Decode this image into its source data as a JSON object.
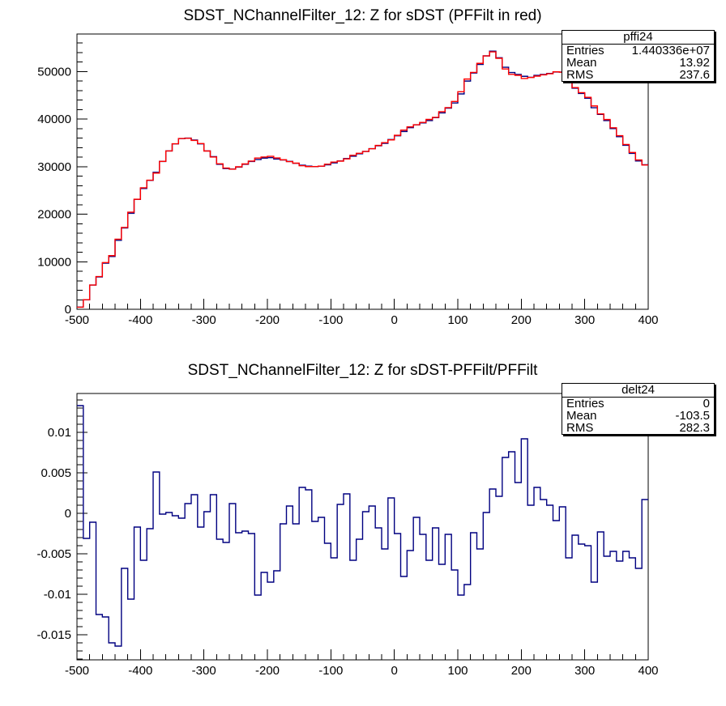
{
  "page": {
    "background_color": "#ffffff",
    "text_color": "#000000",
    "description": "ROOT-style canvas with two stacked 1D histograms"
  },
  "chart_data": [
    {
      "type": "line",
      "title": "SDST_NChannelFilter_12: Z for sDST (PFFilt in red)",
      "xlabel": "",
      "ylabel": "",
      "xlim": [
        -500,
        400
      ],
      "ylim": [
        0,
        57900
      ],
      "grid": false,
      "legend_position": "none (stats box at top right)",
      "bin_start": -500,
      "bin_width": 10,
      "x_minor_step": 20,
      "y_minor_step": 2000,
      "x_ticks": [
        -500,
        -400,
        -300,
        -200,
        -100,
        0,
        100,
        200,
        300,
        400
      ],
      "x_tick_labels": [
        "-500",
        "-400",
        "-300",
        "-200",
        "-100",
        "0",
        "100",
        "200",
        "300",
        "400"
      ],
      "y_ticks": [
        0,
        10000,
        20000,
        30000,
        40000,
        50000
      ],
      "y_tick_labels": [
        "0",
        "10000",
        "20000",
        "30000",
        "40000",
        "50000"
      ],
      "stats": {
        "title": "pffi24",
        "rows": [
          {
            "label": "Entries",
            "value": "1.440336e+07"
          },
          {
            "label": "Mean",
            "value": "13.92"
          },
          {
            "label": "RMS",
            "value": "237.6"
          }
        ]
      },
      "series": [
        {
          "name": "sDST",
          "color": "#000080",
          "values": [
            450,
            2000,
            5100,
            6800,
            9700,
            11100,
            14500,
            17100,
            20200,
            23100,
            25400,
            27100,
            28800,
            31100,
            33300,
            34800,
            35900,
            36000,
            35600,
            34800,
            33300,
            32100,
            30500,
            29600,
            29500,
            29900,
            30500,
            31100,
            31500,
            31800,
            31900,
            31600,
            31400,
            31100,
            30700,
            30300,
            30100,
            30000,
            30100,
            30400,
            30800,
            31200,
            31700,
            32200,
            32700,
            33200,
            33800,
            34400,
            34900,
            35700,
            36500,
            37400,
            38200,
            38800,
            39200,
            39700,
            40300,
            41300,
            42300,
            43400,
            45300,
            48000,
            49700,
            51500,
            53300,
            54300,
            52900,
            50900,
            49800,
            49400,
            49000,
            48800,
            49200,
            49400,
            49600,
            49900,
            49900,
            48300,
            46500,
            45400,
            44400,
            42400,
            41000,
            39700,
            38000,
            36300,
            34500,
            32800,
            31200,
            30400
          ]
        },
        {
          "name": "PFFilt",
          "color": "#ff0000",
          "derived": "PFFilt = sDST / (1 + delta), delta taken from the second chart's series"
        }
      ]
    },
    {
      "type": "line",
      "title": "SDST_NChannelFilter_12: Z for sDST-PFFilt/PFFilt",
      "xlabel": "",
      "ylabel": "",
      "xlim": [
        -500,
        400
      ],
      "ylim": [
        -0.0181,
        0.0148
      ],
      "grid": false,
      "legend_position": "none (stats box at top right)",
      "bin_start": -500,
      "bin_width": 10,
      "x_minor_step": 20,
      "y_minor_step": 0.001,
      "x_ticks": [
        -500,
        -400,
        -300,
        -200,
        -100,
        0,
        100,
        200,
        300,
        400
      ],
      "x_tick_labels": [
        "-500",
        "-400",
        "-300",
        "-200",
        "-100",
        "0",
        "100",
        "200",
        "300",
        "400"
      ],
      "y_ticks": [
        -0.015,
        -0.01,
        -0.005,
        0,
        0.005,
        0.01
      ],
      "y_tick_labels": [
        "-0.015",
        "-0.01",
        "-0.005",
        "0",
        "0.005",
        "0.01"
      ],
      "stats": {
        "title": "delt24",
        "rows": [
          {
            "label": "Entries",
            "value": "0"
          },
          {
            "label": "Mean",
            "value": "-103.5"
          },
          {
            "label": "RMS",
            "value": "282.3"
          }
        ]
      },
      "series": [
        {
          "name": "(sDST-PFFilt)/PFFilt",
          "color": "#000080",
          "values": [
            0.0133,
            -0.0031,
            -0.0011,
            -0.0125,
            -0.0128,
            -0.016,
            -0.0164,
            -0.0068,
            -0.0106,
            -0.0017,
            -0.0058,
            -0.0019,
            0.0051,
            -0.0001,
            0.0001,
            -0.0003,
            -0.0006,
            0.0012,
            0.0023,
            -0.0017,
            0.0002,
            0.0023,
            -0.0032,
            -0.0036,
            0.0012,
            -0.0024,
            -0.0022,
            -0.0025,
            -0.0101,
            -0.0073,
            -0.0085,
            -0.0071,
            -0.0013,
            0.0009,
            -0.0013,
            0.0032,
            0.0029,
            -0.001,
            -0.0005,
            -0.0037,
            -0.0055,
            0.0011,
            0.0024,
            -0.0058,
            -0.0032,
            0.0002,
            0.0009,
            -0.0018,
            -0.0044,
            0.0019,
            -0.0025,
            -0.0078,
            -0.0046,
            -0.0005,
            -0.0026,
            -0.0058,
            -0.0018,
            -0.0063,
            -0.0026,
            -0.007,
            -0.0101,
            -0.0088,
            -0.0024,
            -0.0044,
            0.0001,
            0.003,
            0.0021,
            0.0069,
            0.0076,
            0.0038,
            0.0092,
            0.001,
            0.0032,
            0.0017,
            0.001,
            -0.0009,
            0.0008,
            -0.0055,
            -0.0027,
            -0.0038,
            -0.004,
            -0.0085,
            -0.0023,
            -0.0053,
            -0.0047,
            -0.0059,
            -0.0047,
            -0.0055,
            -0.0068,
            0.0017
          ]
        }
      ]
    }
  ]
}
